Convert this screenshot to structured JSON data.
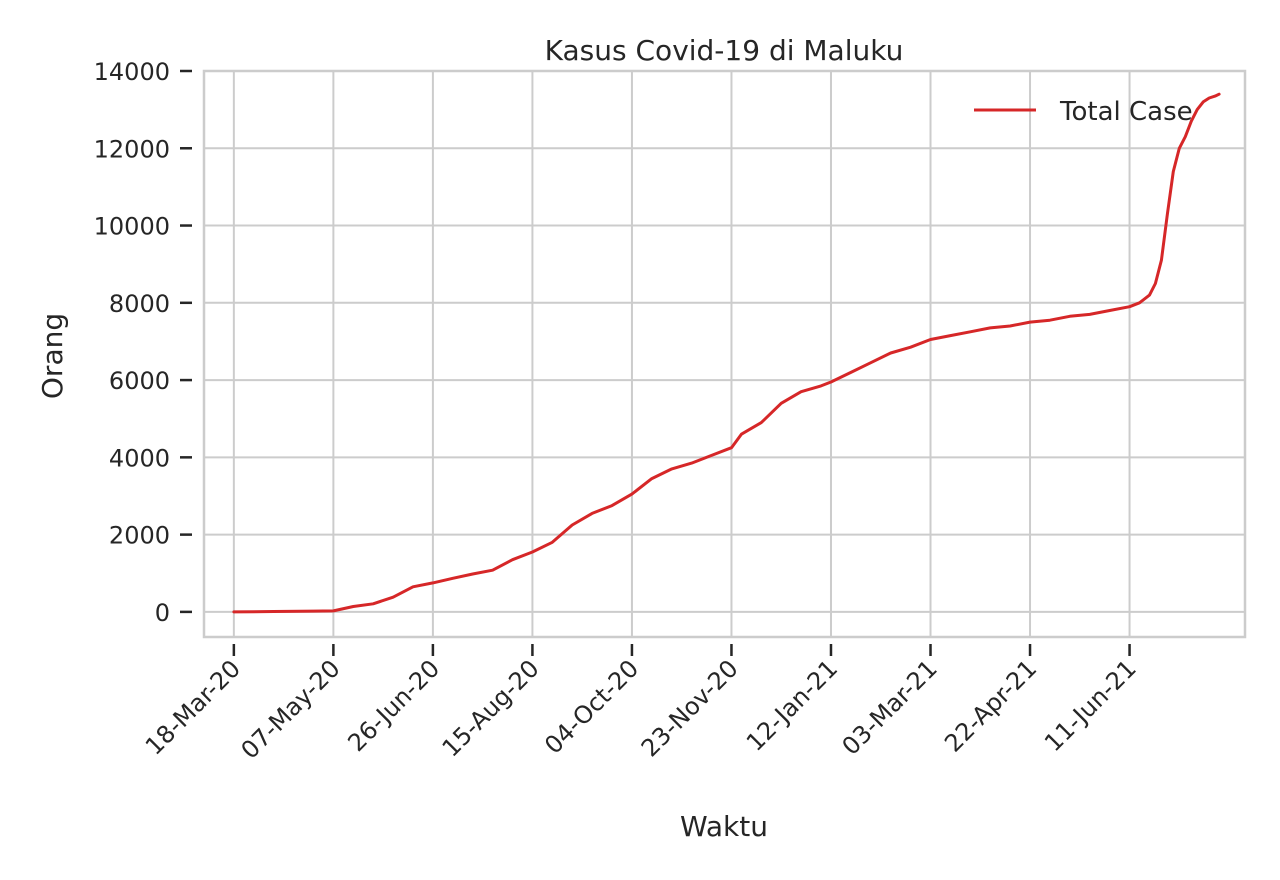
{
  "chart_data": {
    "type": "line",
    "title": "Kasus Covid-19 di Maluku",
    "xlabel": "Waktu",
    "ylabel": "Orang",
    "xlim": [
      "2020-03-03",
      "2021-08-08"
    ],
    "ylim": [
      -650,
      14000
    ],
    "grid": true,
    "legend_position": "top-right",
    "x_tick_dates": [
      "2020-03-18",
      "2020-05-07",
      "2020-06-26",
      "2020-08-15",
      "2020-10-04",
      "2020-11-23",
      "2021-01-12",
      "2021-03-03",
      "2021-04-22",
      "2021-06-11"
    ],
    "x_tick_labels": [
      "18-Mar-20",
      "07-May-20",
      "26-Jun-20",
      "15-Aug-20",
      "04-Oct-20",
      "23-Nov-20",
      "12-Jan-21",
      "03-Mar-21",
      "22-Apr-21",
      "11-Jun-21"
    ],
    "y_ticks": [
      0,
      2000,
      4000,
      6000,
      8000,
      10000,
      12000,
      14000
    ],
    "y_tick_labels": [
      "0",
      "2000",
      "4000",
      "6000",
      "8000",
      "10000",
      "12000",
      "14000"
    ],
    "series": [
      {
        "name": "Total Case",
        "color": "#d62728",
        "x": [
          "2020-03-18",
          "2020-04-07",
          "2020-04-27",
          "2020-05-07",
          "2020-05-17",
          "2020-05-27",
          "2020-06-06",
          "2020-06-16",
          "2020-06-26",
          "2020-07-06",
          "2020-07-16",
          "2020-07-26",
          "2020-08-05",
          "2020-08-15",
          "2020-08-25",
          "2020-09-04",
          "2020-09-14",
          "2020-09-24",
          "2020-10-04",
          "2020-10-14",
          "2020-10-24",
          "2020-11-03",
          "2020-11-13",
          "2020-11-23",
          "2020-11-28",
          "2020-12-08",
          "2020-12-18",
          "2020-12-28",
          "2021-01-07",
          "2021-01-12",
          "2021-01-22",
          "2021-02-01",
          "2021-02-11",
          "2021-02-21",
          "2021-03-03",
          "2021-03-13",
          "2021-03-23",
          "2021-04-02",
          "2021-04-12",
          "2021-04-22",
          "2021-05-02",
          "2021-05-12",
          "2021-05-22",
          "2021-06-01",
          "2021-06-11",
          "2021-06-16",
          "2021-06-21",
          "2021-06-24",
          "2021-06-27",
          "2021-06-30",
          "2021-07-03",
          "2021-07-06",
          "2021-07-09",
          "2021-07-12",
          "2021-07-15",
          "2021-07-18",
          "2021-07-21",
          "2021-07-24",
          "2021-07-26"
        ],
        "values": [
          0,
          10,
          20,
          25,
          140,
          210,
          380,
          650,
          750,
          870,
          980,
          1080,
          1350,
          1550,
          1800,
          2250,
          2550,
          2750,
          3050,
          3450,
          3700,
          3850,
          4050,
          4250,
          4600,
          4900,
          5400,
          5700,
          5850,
          5950,
          6200,
          6450,
          6700,
          6850,
          7050,
          7150,
          7250,
          7350,
          7400,
          7500,
          7550,
          7650,
          7700,
          7800,
          7900,
          8000,
          8200,
          8500,
          9100,
          10300,
          11400,
          12000,
          12300,
          12700,
          13000,
          13200,
          13300,
          13350,
          13400
        ]
      }
    ]
  }
}
